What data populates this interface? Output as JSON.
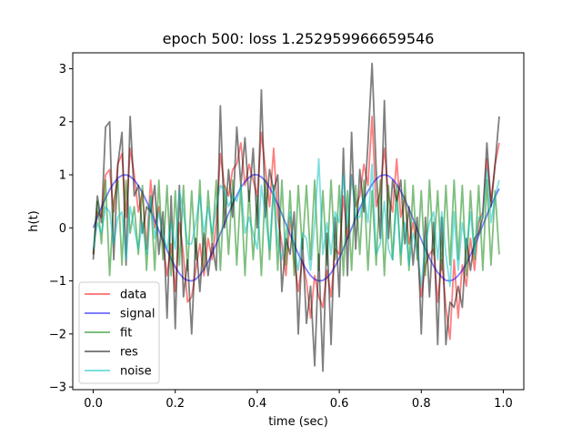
{
  "chart_data": {
    "type": "line",
    "title": "epoch 500: loss 1.252959966659546",
    "xlabel": "time (sec)",
    "ylabel": "h(t)",
    "xlim": [
      -0.05,
      1.05
    ],
    "ylim": [
      -3.05,
      3.3
    ],
    "xticks": [
      0.0,
      0.2,
      0.4,
      0.6,
      0.8,
      1.0
    ],
    "xtick_labels": [
      "0.0",
      "0.2",
      "0.4",
      "0.6",
      "0.8",
      "1.0"
    ],
    "yticks": [
      -3,
      -2,
      -1,
      0,
      1,
      2,
      3
    ],
    "ytick_labels": [
      "−3",
      "−2",
      "−1",
      "0",
      "1",
      "2",
      "3"
    ],
    "grid": false,
    "legend_position": "lower-left",
    "series": [
      {
        "name": "data",
        "color": "#ff0000",
        "x": [
          0.0,
          0.01,
          0.02,
          0.03,
          0.04,
          0.05,
          0.06,
          0.07,
          0.08,
          0.09,
          0.1,
          0.11,
          0.12,
          0.13,
          0.14,
          0.15,
          0.16,
          0.17,
          0.18,
          0.19,
          0.2,
          0.21,
          0.22,
          0.23,
          0.24,
          0.25,
          0.26,
          0.27,
          0.28,
          0.29,
          0.3,
          0.31,
          0.32,
          0.33,
          0.34,
          0.35,
          0.36,
          0.37,
          0.38,
          0.39,
          0.4,
          0.41,
          0.42,
          0.43,
          0.44,
          0.45,
          0.46,
          0.47,
          0.48,
          0.49,
          0.5,
          0.51,
          0.52,
          0.53,
          0.54,
          0.55,
          0.56,
          0.57,
          0.58,
          0.59,
          0.6,
          0.61,
          0.62,
          0.63,
          0.64,
          0.65,
          0.66,
          0.67,
          0.68,
          0.69,
          0.7,
          0.71,
          0.72,
          0.73,
          0.74,
          0.75,
          0.76,
          0.77,
          0.78,
          0.79,
          0.8,
          0.81,
          0.82,
          0.83,
          0.84,
          0.85,
          0.86,
          0.87,
          0.88,
          0.89,
          0.9,
          0.91,
          0.92,
          0.93,
          0.94,
          0.95,
          0.96,
          0.97,
          0.98,
          0.99
        ],
        "values": [
          -0.5,
          0.3,
          0.2,
          1.0,
          1.1,
          0.3,
          1.2,
          1.4,
          0.2,
          1.5,
          1.0,
          0.3,
          0.7,
          -0.4,
          0.9,
          0.0,
          0.4,
          -0.3,
          -0.9,
          -0.3,
          -1.2,
          0.1,
          -0.5,
          -1.4,
          -1.3,
          -0.8,
          -0.3,
          -0.9,
          -0.2,
          -0.6,
          0.1,
          1.4,
          0.8,
          0.6,
          1.1,
          1.2,
          1.6,
          0.8,
          1.2,
          0.9,
          0.6,
          1.8,
          1.1,
          0.4,
          1.5,
          0.2,
          -0.3,
          -0.9,
          0.2,
          -0.6,
          -1.2,
          -0.6,
          -1.0,
          -1.7,
          -0.9,
          -1.3,
          -1.5,
          -0.8,
          -1.3,
          -0.4,
          -0.5,
          0.6,
          -0.2,
          1.0,
          0.4,
          0.6,
          1.2,
          0.8,
          2.1,
          0.4,
          0.7,
          1.5,
          0.6,
          0.3,
          1.3,
          0.2,
          0.6,
          -0.3,
          0.1,
          -0.4,
          -1.3,
          -0.7,
          -0.5,
          -0.4,
          -1.4,
          -0.6,
          -1.5,
          -2.1,
          -0.6,
          -1.7,
          -0.7,
          -1.1,
          -0.2,
          -0.8,
          0.1,
          0.3,
          1.3,
          0.5,
          1.2,
          1.6
        ]
      },
      {
        "name": "signal",
        "color": "#0000ff",
        "x": [
          0.0,
          0.01,
          0.02,
          0.03,
          0.04,
          0.05,
          0.06,
          0.07,
          0.08,
          0.09,
          0.1,
          0.11,
          0.12,
          0.13,
          0.14,
          0.15,
          0.16,
          0.17,
          0.18,
          0.19,
          0.2,
          0.21,
          0.22,
          0.23,
          0.24,
          0.25,
          0.26,
          0.27,
          0.28,
          0.29,
          0.3,
          0.31,
          0.32,
          0.33,
          0.34,
          0.35,
          0.36,
          0.37,
          0.38,
          0.39,
          0.4,
          0.41,
          0.42,
          0.43,
          0.44,
          0.45,
          0.46,
          0.47,
          0.48,
          0.49,
          0.5,
          0.51,
          0.52,
          0.53,
          0.54,
          0.55,
          0.56,
          0.57,
          0.58,
          0.59,
          0.6,
          0.61,
          0.62,
          0.63,
          0.64,
          0.65,
          0.66,
          0.67,
          0.68,
          0.69,
          0.7,
          0.71,
          0.72,
          0.73,
          0.74,
          0.75,
          0.76,
          0.77,
          0.78,
          0.79,
          0.8,
          0.81,
          0.82,
          0.83,
          0.84,
          0.85,
          0.86,
          0.87,
          0.88,
          0.89,
          0.9,
          0.91,
          0.92,
          0.93,
          0.94,
          0.95,
          0.96,
          0.97,
          0.98,
          0.99
        ],
        "values": [
          0.0,
          0.2,
          0.39,
          0.56,
          0.72,
          0.84,
          0.94,
          0.99,
          1.0,
          0.97,
          0.9,
          0.8,
          0.66,
          0.5,
          0.33,
          0.14,
          -0.05,
          -0.24,
          -0.42,
          -0.59,
          -0.74,
          -0.86,
          -0.95,
          -0.99,
          -1.0,
          -0.97,
          -0.89,
          -0.78,
          -0.64,
          -0.47,
          -0.3,
          -0.11,
          0.08,
          0.27,
          0.45,
          0.61,
          0.76,
          0.87,
          0.95,
          1.0,
          1.0,
          0.96,
          0.88,
          0.76,
          0.61,
          0.44,
          0.26,
          0.07,
          -0.12,
          -0.31,
          -0.49,
          -0.65,
          -0.79,
          -0.9,
          -0.97,
          -1.0,
          -0.99,
          -0.94,
          -0.85,
          -0.72,
          -0.57,
          -0.39,
          -0.2,
          -0.01,
          0.18,
          0.37,
          0.54,
          0.69,
          0.82,
          0.92,
          0.98,
          1.0,
          0.98,
          0.92,
          0.82,
          0.69,
          0.53,
          0.36,
          0.17,
          -0.03,
          -0.22,
          -0.4,
          -0.57,
          -0.72,
          -0.84,
          -0.93,
          -0.99,
          -1.0,
          -0.97,
          -0.9,
          -0.8,
          -0.67,
          -0.51,
          -0.34,
          -0.15,
          0.05,
          0.24,
          0.42,
          0.59,
          0.74
        ]
      },
      {
        "name": "fit",
        "color": "#008000",
        "x": [
          0.0,
          0.01,
          0.02,
          0.03,
          0.04,
          0.05,
          0.06,
          0.07,
          0.08,
          0.09,
          0.1,
          0.11,
          0.12,
          0.13,
          0.14,
          0.15,
          0.16,
          0.17,
          0.18,
          0.19,
          0.2,
          0.21,
          0.22,
          0.23,
          0.24,
          0.25,
          0.26,
          0.27,
          0.28,
          0.29,
          0.3,
          0.31,
          0.32,
          0.33,
          0.34,
          0.35,
          0.36,
          0.37,
          0.38,
          0.39,
          0.4,
          0.41,
          0.42,
          0.43,
          0.44,
          0.45,
          0.46,
          0.47,
          0.48,
          0.49,
          0.5,
          0.51,
          0.52,
          0.53,
          0.54,
          0.55,
          0.56,
          0.57,
          0.58,
          0.59,
          0.6,
          0.61,
          0.62,
          0.63,
          0.64,
          0.65,
          0.66,
          0.67,
          0.68,
          0.69,
          0.7,
          0.71,
          0.72,
          0.73,
          0.74,
          0.75,
          0.76,
          0.77,
          0.78,
          0.79,
          0.8,
          0.81,
          0.82,
          0.83,
          0.84,
          0.85,
          0.86,
          0.87,
          0.88,
          0.89,
          0.9,
          0.91,
          0.92,
          0.93,
          0.94,
          0.95,
          0.96,
          0.97,
          0.98,
          0.99
        ],
        "values": [
          -0.5,
          0.5,
          -0.3,
          0.9,
          -0.9,
          0.5,
          0.9,
          -0.7,
          0.9,
          -0.1,
          0.4,
          -0.5,
          0.8,
          -0.8,
          0.6,
          -0.8,
          0.9,
          -0.6,
          0.8,
          -0.9,
          0.7,
          -0.7,
          0.8,
          -0.8,
          0.7,
          -0.6,
          0.9,
          -0.8,
          0.7,
          -0.3,
          0.9,
          -0.8,
          0.8,
          -0.5,
          0.9,
          -0.7,
          0.8,
          -0.9,
          0.7,
          -0.6,
          0.6,
          -0.9,
          0.9,
          -0.6,
          0.8,
          -0.8,
          0.9,
          -0.7,
          0.7,
          -0.9,
          0.8,
          -0.4,
          0.8,
          -0.6,
          0.9,
          -0.8,
          0.7,
          -0.7,
          0.9,
          -0.6,
          0.8,
          -0.9,
          0.7,
          -0.8,
          0.8,
          -0.5,
          0.9,
          -0.8,
          0.7,
          -0.7,
          0.9,
          -0.9,
          0.8,
          -0.6,
          0.8,
          -0.7,
          0.9,
          -0.8,
          0.8,
          -0.6,
          0.7,
          -0.9,
          0.9,
          -0.5,
          0.7,
          -0.8,
          0.8,
          -0.7,
          0.9,
          -0.6,
          0.8,
          -0.9,
          0.7,
          -0.6,
          0.8,
          -0.8,
          0.9,
          -0.7,
          0.7,
          -0.5
        ]
      },
      {
        "name": "res",
        "color": "#000000",
        "x": [
          0.0,
          0.01,
          0.02,
          0.03,
          0.04,
          0.05,
          0.06,
          0.07,
          0.08,
          0.09,
          0.1,
          0.11,
          0.12,
          0.13,
          0.14,
          0.15,
          0.16,
          0.17,
          0.18,
          0.19,
          0.2,
          0.21,
          0.22,
          0.23,
          0.24,
          0.25,
          0.26,
          0.27,
          0.28,
          0.29,
          0.3,
          0.31,
          0.32,
          0.33,
          0.34,
          0.35,
          0.36,
          0.37,
          0.38,
          0.39,
          0.4,
          0.41,
          0.42,
          0.43,
          0.44,
          0.45,
          0.46,
          0.47,
          0.48,
          0.49,
          0.5,
          0.51,
          0.52,
          0.53,
          0.54,
          0.55,
          0.56,
          0.57,
          0.58,
          0.59,
          0.6,
          0.61,
          0.62,
          0.63,
          0.64,
          0.65,
          0.66,
          0.67,
          0.68,
          0.69,
          0.7,
          0.71,
          0.72,
          0.73,
          0.74,
          0.75,
          0.76,
          0.77,
          0.78,
          0.79,
          0.8,
          0.81,
          0.82,
          0.83,
          0.84,
          0.85,
          0.86,
          0.87,
          0.88,
          0.89,
          0.9,
          0.91,
          0.92,
          0.93,
          0.94,
          0.95,
          0.96,
          0.97,
          0.98,
          0.99
        ],
        "values": [
          -0.6,
          0.6,
          0.1,
          1.9,
          2.0,
          -0.6,
          1.2,
          1.8,
          -0.7,
          2.1,
          0.6,
          0.8,
          -0.1,
          0.4,
          0.3,
          0.8,
          -0.5,
          0.3,
          -1.7,
          0.6,
          -1.9,
          0.8,
          -1.3,
          -0.6,
          -2.0,
          -0.2,
          -1.2,
          -0.1,
          -0.9,
          -0.3,
          -0.8,
          2.3,
          0.0,
          1.1,
          0.2,
          1.9,
          0.8,
          1.7,
          0.5,
          1.5,
          0.0,
          2.6,
          0.2,
          1.1,
          0.7,
          1.0,
          -1.2,
          -0.2,
          -0.5,
          0.3,
          -2.0,
          -0.2,
          -1.8,
          -1.1,
          -2.6,
          -0.5,
          -2.7,
          -0.1,
          -2.2,
          0.2,
          -1.3,
          1.5,
          -0.9,
          1.8,
          -0.4,
          1.1,
          0.3,
          1.6,
          3.1,
          1.1,
          -0.2,
          2.4,
          -0.2,
          0.9,
          0.5,
          0.9,
          -0.3,
          0.4,
          -0.7,
          0.2,
          -2.0,
          0.2,
          -1.3,
          0.1,
          -2.2,
          0.2,
          -2.2,
          -1.4,
          -1.5,
          -1.1,
          -1.5,
          -0.2,
          -0.8,
          -0.2,
          -0.1,
          0.2,
          1.6,
          0.4,
          1.2,
          2.1
        ]
      },
      {
        "name": "noise",
        "color": "#00bfbf",
        "x": [
          0.0,
          0.01,
          0.02,
          0.03,
          0.04,
          0.05,
          0.06,
          0.07,
          0.08,
          0.09,
          0.1,
          0.11,
          0.12,
          0.13,
          0.14,
          0.15,
          0.16,
          0.17,
          0.18,
          0.19,
          0.2,
          0.21,
          0.22,
          0.23,
          0.24,
          0.25,
          0.26,
          0.27,
          0.28,
          0.29,
          0.3,
          0.31,
          0.32,
          0.33,
          0.34,
          0.35,
          0.36,
          0.37,
          0.38,
          0.39,
          0.4,
          0.41,
          0.42,
          0.43,
          0.44,
          0.45,
          0.46,
          0.47,
          0.48,
          0.49,
          0.5,
          0.51,
          0.52,
          0.53,
          0.54,
          0.55,
          0.56,
          0.57,
          0.58,
          0.59,
          0.6,
          0.61,
          0.62,
          0.63,
          0.64,
          0.65,
          0.66,
          0.67,
          0.68,
          0.69,
          0.7,
          0.71,
          0.72,
          0.73,
          0.74,
          0.75,
          0.76,
          0.77,
          0.78,
          0.79,
          0.8,
          0.81,
          0.82,
          0.83,
          0.84,
          0.85,
          0.86,
          0.87,
          0.88,
          0.89,
          0.9,
          0.91,
          0.92,
          0.93,
          0.94,
          0.95,
          0.96,
          0.97,
          0.98,
          0.99
        ],
        "values": [
          -0.4,
          0.1,
          -0.1,
          0.4,
          0.3,
          -0.3,
          0.2,
          0.3,
          -0.6,
          0.4,
          0.0,
          -0.4,
          0.1,
          -0.5,
          0.6,
          -0.2,
          0.3,
          -0.1,
          -0.4,
          0.1,
          -0.4,
          0.7,
          0.3,
          -0.3,
          -0.3,
          0.1,
          0.6,
          -0.1,
          0.4,
          -0.1,
          0.4,
          0.8,
          0.7,
          0.4,
          0.6,
          0.5,
          0.8,
          -0.1,
          0.2,
          -0.1,
          -0.4,
          0.8,
          0.2,
          -0.4,
          0.8,
          -0.3,
          -0.6,
          -0.1,
          0.3,
          -0.4,
          -0.8,
          -0.1,
          -0.2,
          -0.8,
          0.1,
          1.3,
          -0.5,
          0.1,
          -0.5,
          0.3,
          0.1,
          1.0,
          0.0,
          1.0,
          0.2,
          0.2,
          0.6,
          0.1,
          1.2,
          -0.5,
          -0.3,
          0.5,
          -0.4,
          -0.6,
          0.5,
          -0.5,
          0.1,
          -0.7,
          -0.1,
          -0.4,
          -1.1,
          -0.3,
          0.1,
          0.3,
          -0.6,
          0.3,
          -0.5,
          -1.1,
          0.3,
          -0.8,
          0.1,
          -0.4,
          0.3,
          -0.5,
          0.2,
          0.2,
          1.1,
          0.1,
          0.6,
          0.9
        ]
      }
    ]
  }
}
